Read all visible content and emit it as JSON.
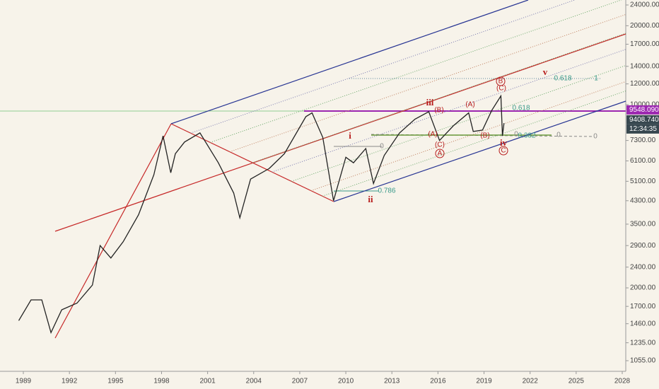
{
  "chart_data": {
    "type": "line",
    "log_scale": true,
    "x": [
      1988.7,
      1989.5,
      1990.2,
      1990.8,
      1991.5,
      1992.5,
      1993.5,
      1994.0,
      1994.7,
      1995.5,
      1996.5,
      1997.5,
      1998.1,
      1998.6,
      1998.9,
      1999.5,
      2000.5,
      2001.7,
      2002.7,
      2003.1,
      2003.8,
      2005.0,
      2006.0,
      2007.4,
      2007.8,
      2008.5,
      2009.2,
      2010.0,
      2010.5,
      2011.3,
      2011.8,
      2012.5,
      2013.5,
      2014.5,
      2015.4,
      2016.1,
      2017.0,
      2018.0,
      2018.3,
      2018.9,
      2019.5,
      2020.1,
      2020.2,
      2020.3
    ],
    "series": [
      {
        "color": "#222222",
        "values": [
          1500,
          1800,
          1800,
          1350,
          1650,
          1750,
          2050,
          2900,
          2600,
          3000,
          3800,
          5400,
          7600,
          5500,
          6500,
          7200,
          7800,
          6000,
          4600,
          3700,
          5200,
          5700,
          6500,
          9000,
          9300,
          7500,
          4300,
          6300,
          6000,
          6800,
          5000,
          6400,
          7800,
          8800,
          9400,
          7300,
          8300,
          9300,
          7900,
          8000,
          9500,
          10800,
          7600,
          8500
        ]
      }
    ],
    "xlim": [
      1987.48,
      2028.23
    ],
    "xticks": [
      1989,
      1992,
      1995,
      1998,
      2001,
      2004,
      2007,
      2010,
      2013,
      2016,
      2019,
      2022,
      2025,
      2028
    ],
    "ylim": [
      961,
      25070
    ],
    "yticks": [
      {
        "value": 24000,
        "label": "24000.00"
      },
      {
        "value": 20000,
        "label": "20000.00"
      },
      {
        "value": 17000,
        "label": "17000.00"
      },
      {
        "value": 14000,
        "label": "14000.00"
      },
      {
        "value": 12000,
        "label": "12000.00"
      },
      {
        "value": 10000,
        "label": "10000.00"
      },
      {
        "value": 7300,
        "label": "7300.00"
      },
      {
        "value": 6100,
        "label": "6100.00"
      },
      {
        "value": 5100,
        "label": "5100.00"
      },
      {
        "value": 4300,
        "label": "4300.00"
      },
      {
        "value": 3500,
        "label": "3500.00"
      },
      {
        "value": 2900,
        "label": "2900.00"
      },
      {
        "value": 2400,
        "label": "2400.00"
      },
      {
        "value": 2000,
        "label": "2000.00"
      },
      {
        "value": 1700,
        "label": "1700.00"
      },
      {
        "value": 1460,
        "label": "1460.00"
      },
      {
        "value": 1235,
        "label": "1235.00"
      },
      {
        "value": 1055,
        "label": "1055.00"
      }
    ],
    "price_labels": [
      {
        "value": 9548.09,
        "label": "9548.090"
      },
      {
        "value": 9408.74,
        "label": "9408.740"
      },
      "12:34:35"
    ],
    "annotations": [
      "i",
      "ii",
      "iii",
      "iv",
      "v",
      "(A)",
      "(A)",
      "(B)",
      "(B)",
      "(C)",
      "(C)",
      "A",
      "B",
      "C",
      "0.618",
      "0.618",
      "1",
      "0.786",
      "0",
      "0",
      "0",
      "0",
      "0.382"
    ]
  }
}
